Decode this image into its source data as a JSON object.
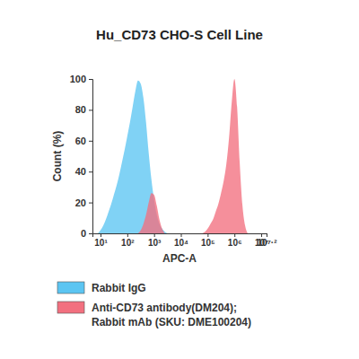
{
  "chart_data": {
    "type": "area",
    "title": "Hu_CD73 CHO-S Cell Line",
    "x_label": "APC-A",
    "y_label": "Count (%)",
    "log": "x",
    "legend": "bottom-left",
    "grid": false,
    "xlim": [
      5,
      15848932
    ],
    "xticks": [
      {
        "value": 10,
        "label": "10¹"
      },
      {
        "value": 100,
        "label": "10²"
      },
      {
        "value": 1000,
        "label": "10³"
      },
      {
        "value": 10000,
        "label": "10⁴"
      },
      {
        "value": 100000,
        "label": "10⁵"
      },
      {
        "value": 1000000,
        "label": "10⁶"
      },
      {
        "value": 10000000,
        "label": "10⁷"
      },
      {
        "value": 15848932,
        "label": "10⁷·²"
      }
    ],
    "ylim": [
      0,
      100
    ],
    "yticks": [
      0,
      20,
      40,
      60,
      80,
      100
    ],
    "x": [
      7.94,
      10,
      12.59,
      15.85,
      19.95,
      25.12,
      31.62,
      39.81,
      50.12,
      63.1,
      79.43,
      100,
      125.9,
      158.5,
      199.5,
      251.2,
      316.2,
      398.1,
      501.2,
      631,
      794.3,
      1000,
      1259,
      1585,
      1995,
      2512,
      3162,
      63096,
      79433,
      100000,
      125893,
      158489,
      199526,
      251189,
      316228,
      398107,
      501187,
      630957,
      794328,
      1000000,
      1258925,
      1584893,
      1995262,
      2511886,
      3162278
    ],
    "series": [
      {
        "name": "Rabbit IgG",
        "color": "#5cc5f2",
        "values": [
          0,
          2,
          5,
          9,
          14,
          19,
          25,
          31,
          38,
          46,
          54,
          63,
          72,
          82,
          92,
          99,
          97,
          88,
          72,
          52,
          35,
          22,
          12,
          6,
          3,
          1,
          0,
          null,
          null,
          null,
          null,
          null,
          null,
          null,
          null,
          null,
          null,
          null,
          null,
          null,
          null,
          null,
          null,
          null,
          null
        ]
      },
      {
        "name": "Anti-CD73 antibody(DM204); Rabbit mAb (SKU: DME100204)",
        "color": "#f2707f",
        "values": [
          null,
          null,
          null,
          null,
          null,
          null,
          null,
          null,
          null,
          null,
          null,
          null,
          null,
          null,
          null,
          0,
          2,
          6,
          12,
          20,
          26,
          25,
          18,
          9,
          3,
          0,
          null,
          0,
          1,
          3,
          6,
          9,
          14,
          19,
          26,
          34,
          45,
          62,
          85,
          100,
          82,
          45,
          18,
          5,
          0
        ]
      }
    ]
  }
}
